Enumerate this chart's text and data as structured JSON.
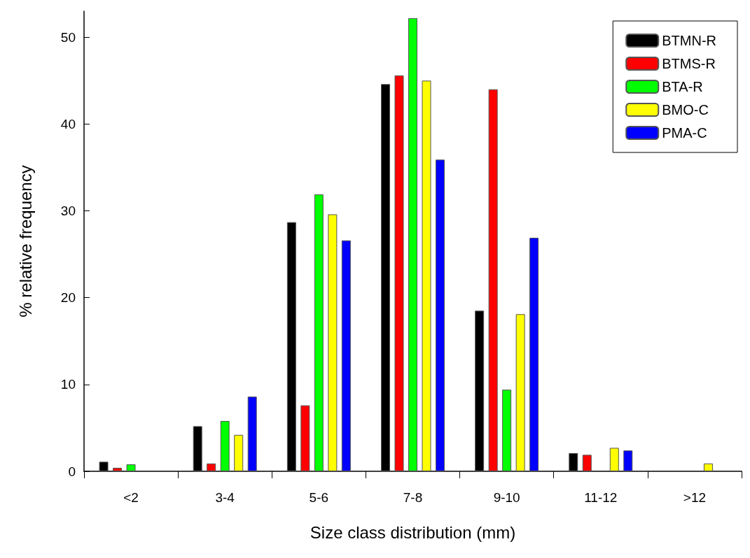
{
  "chart_data": {
    "type": "bar",
    "xlabel": "Size class distribution (mm)",
    "ylabel": "% relative frequency",
    "categories": [
      "<2",
      "3-4",
      "5-6",
      "7-8",
      "9-10",
      "11-12",
      ">12"
    ],
    "series": [
      {
        "name": "BTMN-R",
        "color": "#000000",
        "values": [
          1.1,
          5.2,
          28.7,
          44.6,
          18.5,
          2.1,
          null
        ]
      },
      {
        "name": "BTMS-R",
        "color": "#ff0000",
        "values": [
          0.4,
          0.9,
          7.6,
          45.6,
          44.0,
          1.9,
          null
        ]
      },
      {
        "name": "BTA-R",
        "color": "#00ff00",
        "values": [
          0.8,
          5.8,
          31.9,
          52.2,
          9.4,
          null,
          null
        ]
      },
      {
        "name": "BMO-C",
        "color": "#ffff00",
        "values": [
          null,
          4.2,
          29.6,
          45.0,
          18.1,
          2.7,
          0.9
        ]
      },
      {
        "name": "PMA-C",
        "color": "#0000ff",
        "values": [
          null,
          8.6,
          26.6,
          35.9,
          26.9,
          2.4,
          null
        ]
      }
    ],
    "ylim": [
      0,
      53
    ],
    "yticks": [
      0,
      10,
      20,
      30,
      40,
      50
    ],
    "grid": false,
    "legend": "top right"
  }
}
